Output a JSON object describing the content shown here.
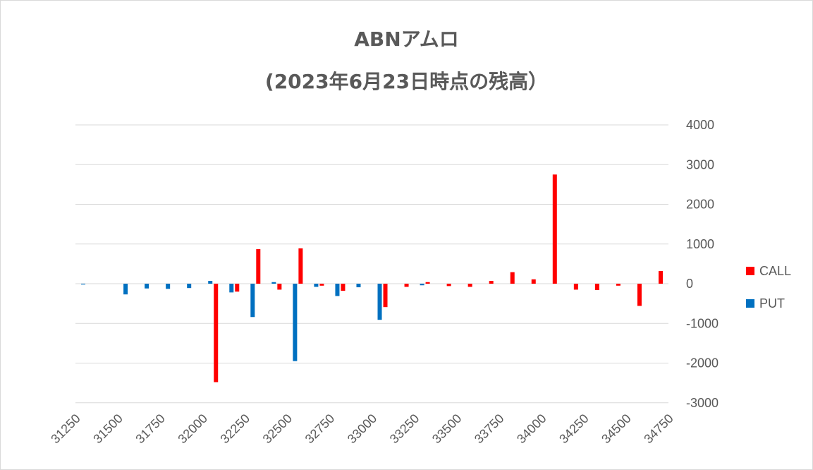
{
  "chart_data": {
    "type": "bar",
    "title": "ABNアムロ",
    "subtitle": "(2023年6月23日時点の残高）",
    "x_tick_labels": [
      "31250",
      "31500",
      "31750",
      "32000",
      "32250",
      "32500",
      "32750",
      "33000",
      "33250",
      "33500",
      "33750",
      "34000",
      "34250",
      "34500",
      "34750"
    ],
    "y_tick_labels": [
      "4000",
      "3000",
      "2000",
      "1000",
      "0",
      "-1000",
      "-2000",
      "-3000"
    ],
    "ylim": [
      -3000,
      4000
    ],
    "grid": true,
    "legend_position": "right",
    "strikes": [
      31250,
      31375,
      31500,
      31625,
      31750,
      31875,
      32000,
      32125,
      32250,
      32375,
      32500,
      32625,
      32750,
      32875,
      33000,
      33125,
      33250,
      33375,
      33500,
      33625,
      33750,
      33875,
      34000,
      34125,
      34250,
      34375,
      34500,
      34625
    ],
    "series": [
      {
        "name": "CALL",
        "color": "#ff0000",
        "values": [
          0,
          0,
          0,
          0,
          0,
          0,
          -2480,
          -200,
          870,
          -150,
          890,
          -50,
          -180,
          0,
          -590,
          -80,
          40,
          -60,
          -80,
          70,
          290,
          110,
          2750,
          -150,
          -160,
          -50,
          -560,
          320
        ]
      },
      {
        "name": "PUT",
        "color": "#0070c0",
        "values": [
          -20,
          0,
          -270,
          -120,
          -130,
          -110,
          70,
          -220,
          -840,
          40,
          -1950,
          -80,
          -310,
          -90,
          -910,
          0,
          -40,
          0,
          0,
          0,
          0,
          0,
          0,
          0,
          0,
          0,
          0,
          0
        ]
      }
    ]
  }
}
